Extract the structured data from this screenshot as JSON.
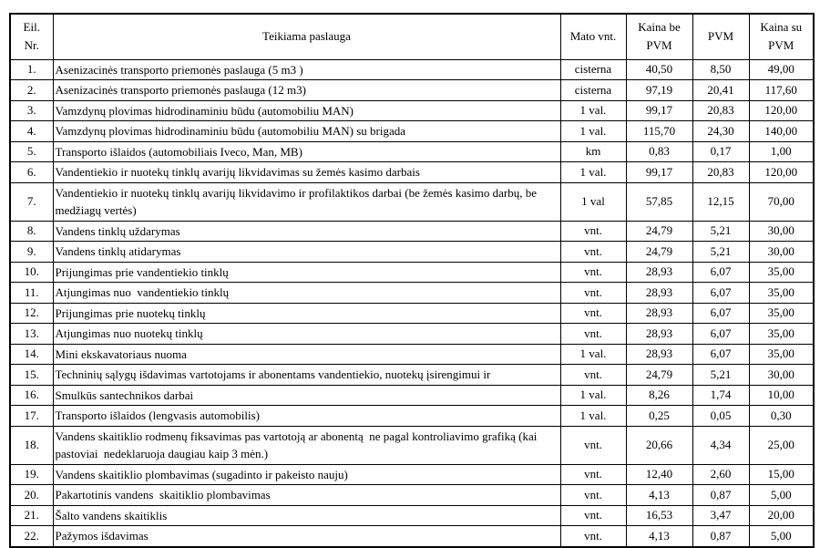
{
  "table": {
    "headers": [
      "Eil.\nNr.",
      "Teikiama paslauga",
      "Mato vnt.",
      "Kaina be\nPVM",
      "PVM",
      "Kaina su\nPVM"
    ],
    "rows": [
      {
        "nr": "1.",
        "service": "Asenizacinės transporto priemonės paslauga (5 m3 )",
        "unit": "cisterna",
        "price_no_vat": "40,50",
        "vat": "8,50",
        "price_with_vat": "49,00"
      },
      {
        "nr": "2.",
        "service": "Asenizacinės transporto priemonės paslauga (12 m3)",
        "unit": "cisterna",
        "price_no_vat": "97,19",
        "vat": "20,41",
        "price_with_vat": "117,60"
      },
      {
        "nr": "3.",
        "service": "Vamzdynų plovimas hidrodinaminiu būdu (automobiliu MAN)",
        "unit": "1 val.",
        "price_no_vat": "99,17",
        "vat": "20,83",
        "price_with_vat": "120,00"
      },
      {
        "nr": "4.",
        "service": "Vamzdynų plovimas hidrodinaminiu būdu (automobiliu MAN) su brigada",
        "unit": "1 val.",
        "price_no_vat": "115,70",
        "vat": "24,30",
        "price_with_vat": "140,00"
      },
      {
        "nr": "5.",
        "service": "Transporto išlaidos (automobiliais Iveco, Man, MB)",
        "unit": "km",
        "price_no_vat": "0,83",
        "vat": "0,17",
        "price_with_vat": "1,00"
      },
      {
        "nr": "6.",
        "service": "Vandentiekio ir nuotekų tinklų avarijų likvidavimas su žemės kasimo darbais",
        "unit": "1 val.",
        "price_no_vat": "99,17",
        "vat": "20,83",
        "price_with_vat": "120,00"
      },
      {
        "nr": "7.",
        "service": "Vandentiekio ir nuotekų tinklų avarijų likvidavimo ir profilaktikos darbai (be žemės kasimo darbų, be medžiagų vertės)",
        "unit": "1 val",
        "price_no_vat": "57,85",
        "vat": "12,15",
        "price_with_vat": "70,00"
      },
      {
        "nr": "8.",
        "service": "Vandens tinklų uždarymas",
        "unit": "vnt.",
        "price_no_vat": "24,79",
        "vat": "5,21",
        "price_with_vat": "30,00"
      },
      {
        "nr": "9.",
        "service": "Vandens tinklų atidarymas",
        "unit": "vnt.",
        "price_no_vat": "24,79",
        "vat": "5,21",
        "price_with_vat": "30,00"
      },
      {
        "nr": "10.",
        "service": "Prijungimas prie vandentiekio tinklų",
        "unit": "vnt.",
        "price_no_vat": "28,93",
        "vat": "6,07",
        "price_with_vat": "35,00"
      },
      {
        "nr": "11.",
        "service": "Atjungimas nuo  vandentiekio tinklų",
        "unit": "vnt.",
        "price_no_vat": "28,93",
        "vat": "6,07",
        "price_with_vat": "35,00"
      },
      {
        "nr": "12.",
        "service": "Prijungimas prie nuotekų tinklų",
        "unit": "vnt.",
        "price_no_vat": "28,93",
        "vat": "6,07",
        "price_with_vat": "35,00"
      },
      {
        "nr": "13.",
        "service": "Atjungimas nuo nuotekų tinklų",
        "unit": "vnt.",
        "price_no_vat": "28,93",
        "vat": "6,07",
        "price_with_vat": "35,00"
      },
      {
        "nr": "14.",
        "service": "Mini ekskavatoriaus nuoma",
        "unit": "1 val.",
        "price_no_vat": "28,93",
        "vat": "6,07",
        "price_with_vat": "35,00"
      },
      {
        "nr": "15.",
        "service": "Techninių sąlygų išdavimas vartotojams ir abonentams vandentiekio, nuotekų įsirengimui ir",
        "unit": "vnt.",
        "price_no_vat": "24,79",
        "vat": "5,21",
        "price_with_vat": "30,00"
      },
      {
        "nr": "16.",
        "service": "Smulkūs santechnikos darbai",
        "unit": "1 val.",
        "price_no_vat": "8,26",
        "vat": "1,74",
        "price_with_vat": "10,00"
      },
      {
        "nr": "17.",
        "service": "Transporto išlaidos (lengvasis automobilis)",
        "unit": "1 val.",
        "price_no_vat": "0,25",
        "vat": "0,05",
        "price_with_vat": "0,30"
      },
      {
        "nr": "18.",
        "service": "Vandens skaitiklio rodmenų fiksavimas pas vartotoją ar abonentą  ne pagal kontroliavimo grafiką (kai pastoviai  nedeklaruoja daugiau kaip 3 mėn.)",
        "unit": "vnt.",
        "price_no_vat": "20,66",
        "vat": "4,34",
        "price_with_vat": "25,00"
      },
      {
        "nr": "19.",
        "service": "Vandens skaitiklio plombavimas (sugadinto ir pakeisto nauju)",
        "unit": "vnt.",
        "price_no_vat": "12,40",
        "vat": "2,60",
        "price_with_vat": "15,00"
      },
      {
        "nr": "20.",
        "service": "Pakartotinis vandens  skaitiklio plombavimas",
        "unit": "vnt.",
        "price_no_vat": "4,13",
        "vat": "0,87",
        "price_with_vat": "5,00"
      },
      {
        "nr": "21.",
        "service": "Šalto vandens skaitiklis",
        "unit": "vnt.",
        "price_no_vat": "16,53",
        "vat": "3,47",
        "price_with_vat": "20,00"
      },
      {
        "nr": "22.",
        "service": "Pažymos išdavimas",
        "unit": "vnt.",
        "price_no_vat": "4,13",
        "vat": "0,87",
        "price_with_vat": "5,00"
      }
    ]
  }
}
